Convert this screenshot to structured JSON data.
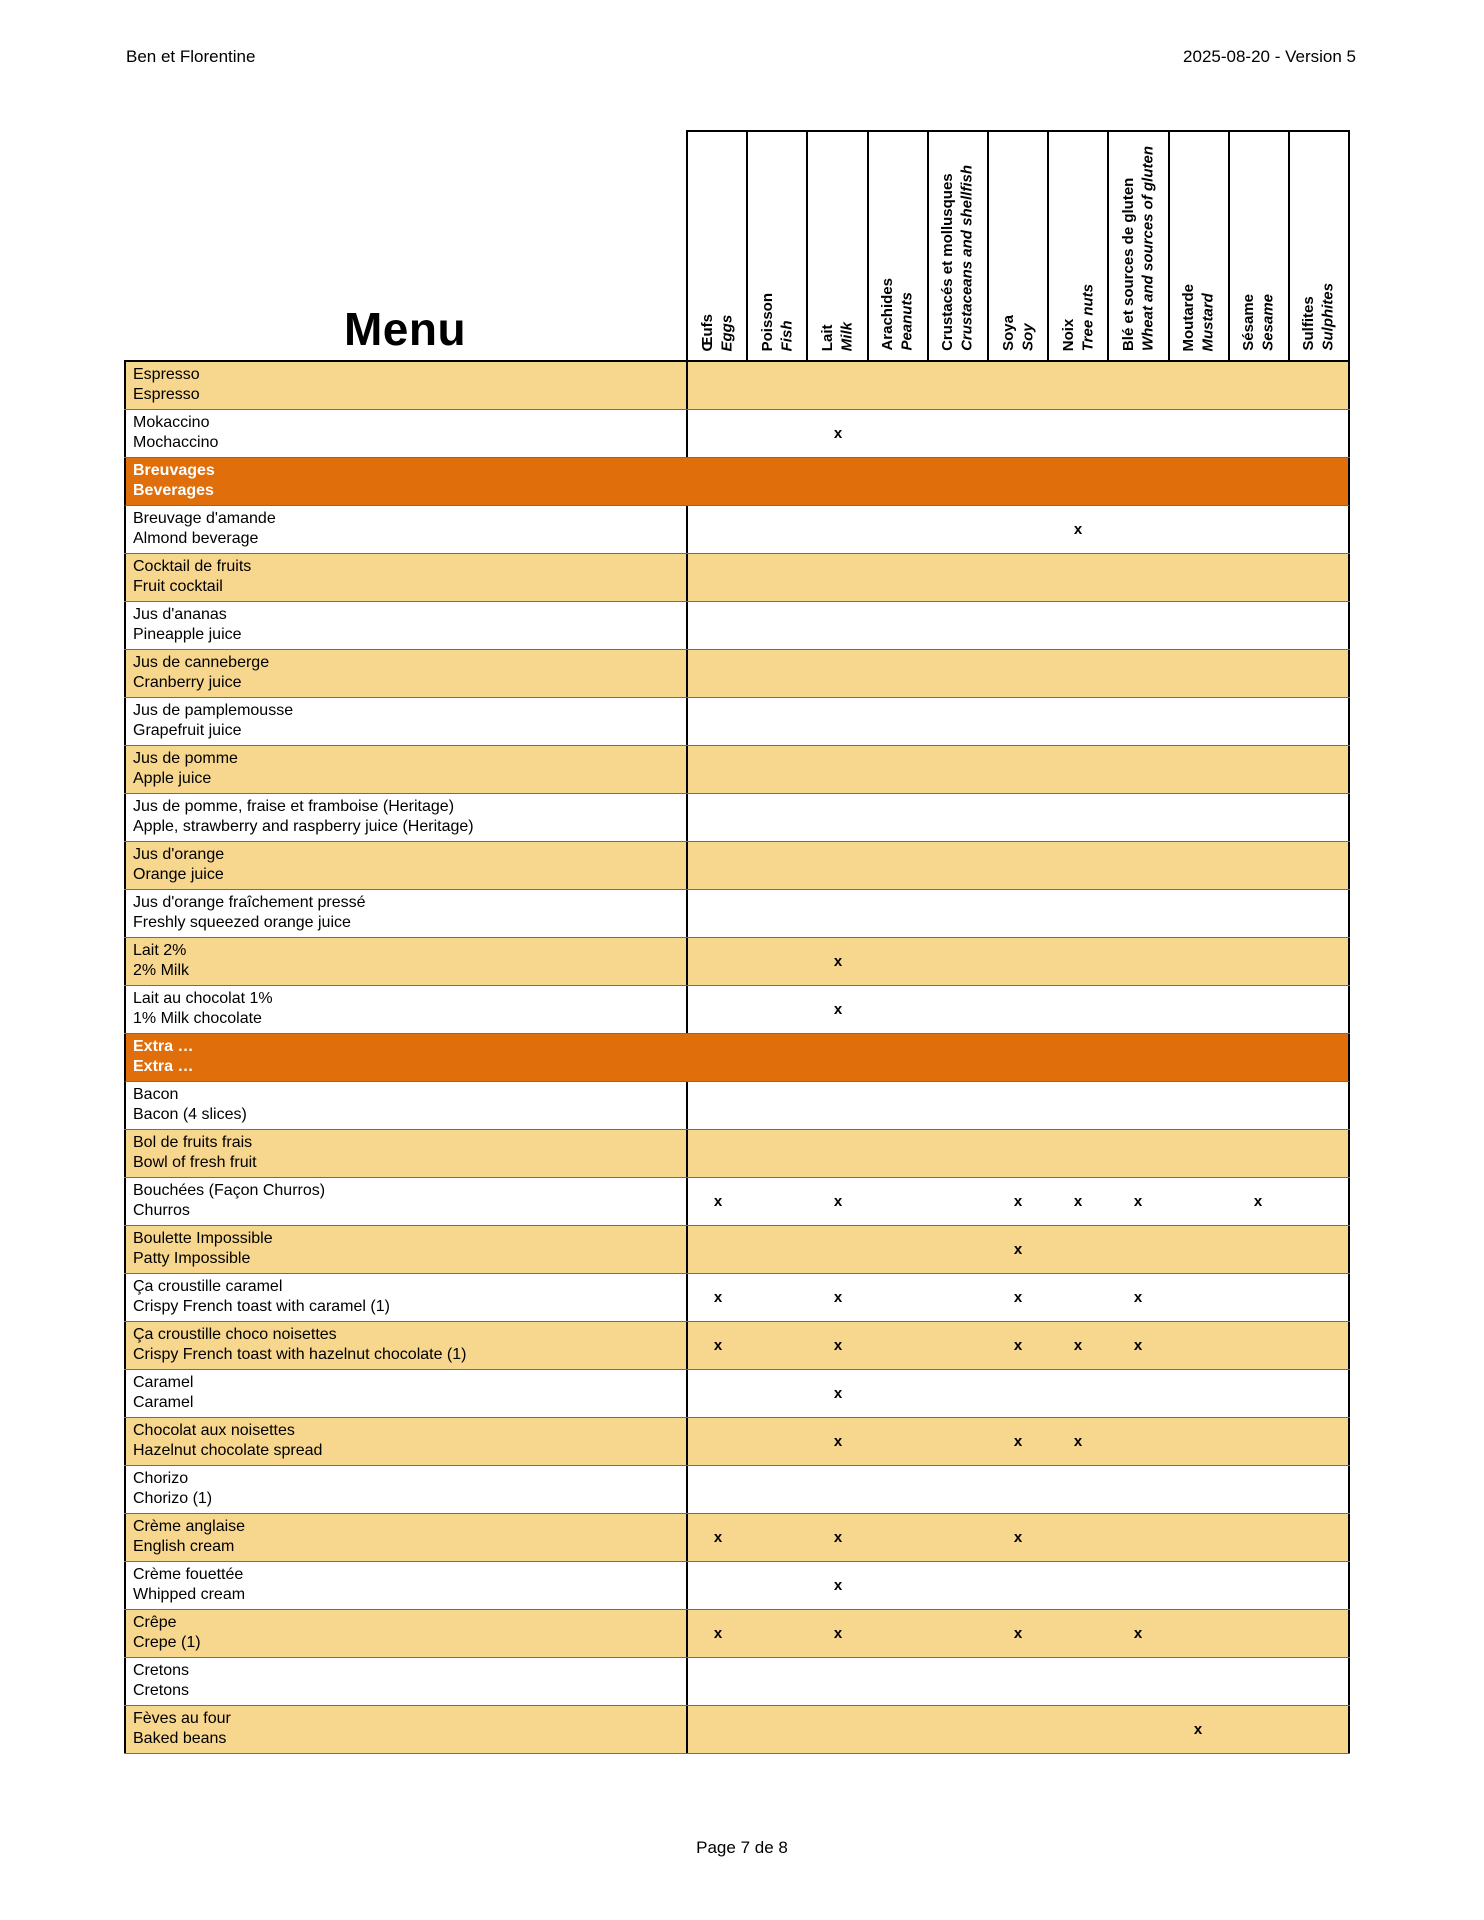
{
  "document": {
    "header_left": "Ben et Florentine",
    "header_right": "2025-08-20 - Version 5",
    "menu_title": "Menu",
    "footer": "Page 7 de 8",
    "mark_symbol": "x"
  },
  "colors": {
    "tan_row": "#F7D68D",
    "section_row": "#E06E0A",
    "border": "#000000"
  },
  "allergen_columns": [
    {
      "fr": "Œufs",
      "en": "Eggs"
    },
    {
      "fr": "Poisson",
      "en": "Fish"
    },
    {
      "fr": "Lait",
      "en": "Milk"
    },
    {
      "fr": "Arachides",
      "en": "Peanuts"
    },
    {
      "fr": "Crustacés et mollusques",
      "en": "Crustaceans and shellfish"
    },
    {
      "fr": "Soya",
      "en": "Soy"
    },
    {
      "fr": "Noix",
      "en": "Tree nuts"
    },
    {
      "fr": "Blé et sources de gluten",
      "en": "Wheat and sources of gluten"
    },
    {
      "fr": "Moutarde",
      "en": "Mustard"
    },
    {
      "fr": "Sésame",
      "en": "Sesame"
    },
    {
      "fr": "Sulfites",
      "en": "Sulphites"
    }
  ],
  "rows": [
    {
      "type": "item",
      "shade": "tan",
      "fr": "Espresso",
      "en": "Espresso",
      "marks": []
    },
    {
      "type": "item",
      "shade": "white",
      "fr": "Mokaccino",
      "en": "Mochaccino",
      "marks": [
        2
      ]
    },
    {
      "type": "section",
      "fr": "Breuvages",
      "en": "Beverages"
    },
    {
      "type": "item",
      "shade": "white",
      "fr": "Breuvage d'amande",
      "en": "Almond beverage",
      "marks": [
        6
      ]
    },
    {
      "type": "item",
      "shade": "tan",
      "fr": "Cocktail de fruits",
      "en": "Fruit cocktail",
      "marks": []
    },
    {
      "type": "item",
      "shade": "white",
      "fr": "Jus d'ananas",
      "en": "Pineapple juice",
      "marks": []
    },
    {
      "type": "item",
      "shade": "tan",
      "fr": "Jus de canneberge",
      "en": "Cranberry juice",
      "marks": []
    },
    {
      "type": "item",
      "shade": "white",
      "fr": "Jus de pamplemousse",
      "en": "Grapefruit juice",
      "marks": []
    },
    {
      "type": "item",
      "shade": "tan",
      "fr": "Jus de pomme",
      "en": "Apple juice",
      "marks": []
    },
    {
      "type": "item",
      "shade": "white",
      "fr": "Jus de pomme, fraise et framboise (Heritage)",
      "en": "Apple, strawberry and raspberry juice (Heritage)",
      "marks": []
    },
    {
      "type": "item",
      "shade": "tan",
      "fr": "Jus d'orange",
      "en": "Orange juice",
      "marks": []
    },
    {
      "type": "item",
      "shade": "white",
      "fr": "Jus d'orange fraîchement pressé",
      "en": "Freshly squeezed orange juice",
      "marks": []
    },
    {
      "type": "item",
      "shade": "tan",
      "fr": "Lait 2%",
      "en": "2% Milk",
      "marks": [
        2
      ]
    },
    {
      "type": "item",
      "shade": "white",
      "fr": "Lait au chocolat 1%",
      "en": "1% Milk chocolate",
      "marks": [
        2
      ]
    },
    {
      "type": "section",
      "fr": "Extra …",
      "en": "Extra …"
    },
    {
      "type": "item",
      "shade": "white",
      "fr": "Bacon",
      "en": "Bacon (4 slices)",
      "marks": []
    },
    {
      "type": "item",
      "shade": "tan",
      "fr": "Bol de fruits frais",
      "en": "Bowl of fresh fruit",
      "marks": []
    },
    {
      "type": "item",
      "shade": "white",
      "fr": "Bouchées (Façon Churros)",
      "en": "Churros",
      "marks": [
        0,
        2,
        5,
        6,
        7,
        9
      ]
    },
    {
      "type": "item",
      "shade": "tan",
      "fr": "Boulette Impossible",
      "en": "Patty Impossible",
      "marks": [
        5
      ]
    },
    {
      "type": "item",
      "shade": "white",
      "fr": "Ça croustille caramel",
      "en": "Crispy French toast with caramel (1)",
      "marks": [
        0,
        2,
        5,
        7
      ]
    },
    {
      "type": "item",
      "shade": "tan",
      "fr": "Ça croustille choco noisettes",
      "en": "Crispy French toast with hazelnut chocolate (1)",
      "marks": [
        0,
        2,
        5,
        6,
        7
      ]
    },
    {
      "type": "item",
      "shade": "white",
      "fr": "Caramel",
      "en": "Caramel",
      "marks": [
        2
      ]
    },
    {
      "type": "item",
      "shade": "tan",
      "fr": "Chocolat aux noisettes",
      "en": "Hazelnut chocolate spread",
      "marks": [
        2,
        5,
        6
      ]
    },
    {
      "type": "item",
      "shade": "white",
      "fr": "Chorizo",
      "en": "Chorizo (1)",
      "marks": []
    },
    {
      "type": "item",
      "shade": "tan",
      "fr": "Crème anglaise",
      "en": "English cream",
      "marks": [
        0,
        2,
        5
      ]
    },
    {
      "type": "item",
      "shade": "white",
      "fr": "Crème fouettée",
      "en": "Whipped cream",
      "marks": [
        2
      ]
    },
    {
      "type": "item",
      "shade": "tan",
      "fr": "Crêpe",
      "en": "Crepe (1)",
      "marks": [
        0,
        2,
        5,
        7
      ]
    },
    {
      "type": "item",
      "shade": "white",
      "fr": "Cretons",
      "en": "Cretons",
      "marks": []
    },
    {
      "type": "item",
      "shade": "tan",
      "fr": "Fèves au four",
      "en": "Baked beans",
      "marks": [
        8
      ]
    }
  ]
}
